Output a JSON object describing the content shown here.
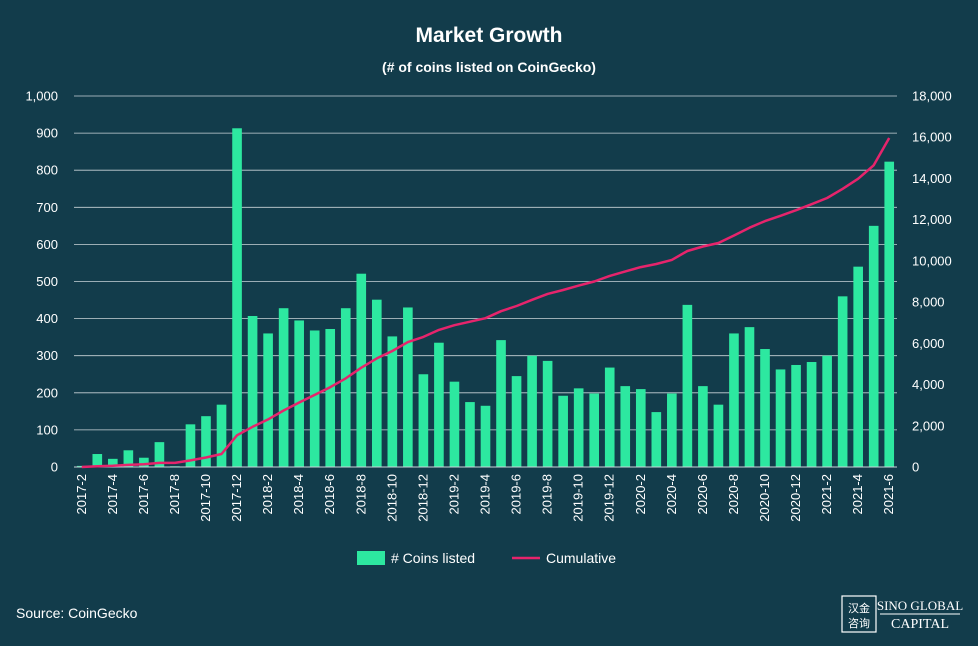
{
  "source_label": "Source: CoinGecko",
  "logo": {
    "line1": "SINO GLOBAL",
    "line2": "CAPITAL",
    "glyphs": "汉金 咨询"
  },
  "colors": {
    "background": "#123c4b",
    "bar": "#2de8a0",
    "line": "#e6246c",
    "grid": "#c9d3d8"
  },
  "chart_data": {
    "type": "bar",
    "title": "Market Growth",
    "subtitle": "(# of coins listed on CoinGecko)",
    "xlabel": "",
    "ylabel": "",
    "categories": [
      "2017-2",
      "2017-3",
      "2017-4",
      "2017-5",
      "2017-6",
      "2017-7",
      "2017-8",
      "2017-9",
      "2017-10",
      "2017-11",
      "2017-12",
      "2018-1",
      "2018-2",
      "2018-3",
      "2018-4",
      "2018-5",
      "2018-6",
      "2018-7",
      "2018-8",
      "2018-9",
      "2018-10",
      "2018-11",
      "2018-12",
      "2019-1",
      "2019-2",
      "2019-3",
      "2019-4",
      "2019-5",
      "2019-6",
      "2019-7",
      "2019-8",
      "2019-9",
      "2019-10",
      "2019-11",
      "2019-12",
      "2020-1",
      "2020-2",
      "2020-3",
      "2020-4",
      "2020-5",
      "2020-6",
      "2020-7",
      "2020-8",
      "2020-9",
      "2020-10",
      "2020-11",
      "2020-12",
      "2021-1",
      "2021-2",
      "2021-3",
      "2021-4",
      "2021-5",
      "2021-6"
    ],
    "tick_labels": [
      "2017-2",
      "2017-4",
      "2017-6",
      "2017-8",
      "2017-10",
      "2017-12",
      "2018-2",
      "2018-4",
      "2018-6",
      "2018-8",
      "2018-10",
      "2018-12",
      "2019-2",
      "2019-4",
      "2019-6",
      "2019-8",
      "2019-10",
      "2019-12",
      "2020-2",
      "2020-4",
      "2020-6",
      "2020-8",
      "2020-10",
      "2020-12",
      "2021-2",
      "2021-4",
      "2021-6"
    ],
    "series": [
      {
        "name": "# Coins listed",
        "axis": "left",
        "type": "bar",
        "values": [
          3,
          35,
          22,
          45,
          25,
          67,
          2,
          115,
          137,
          168,
          913,
          407,
          360,
          428,
          395,
          368,
          372,
          428,
          521,
          451,
          352,
          430,
          250,
          335,
          230,
          175,
          165,
          342,
          245,
          300,
          286,
          192,
          212,
          198,
          268,
          218,
          210,
          148,
          198,
          437,
          218,
          168,
          360,
          377,
          318,
          263,
          275,
          283,
          300,
          460,
          540,
          650,
          823
        ]
      },
      {
        "name": "Cumulative",
        "axis": "right",
        "type": "line",
        "values": [
          0,
          40,
          60,
          100,
          130,
          200,
          200,
          320,
          460,
          630,
          1540,
          1950,
          2310,
          2740,
          3130,
          3500,
          3870,
          4300,
          4820,
          5270,
          5630,
          6060,
          6310,
          6650,
          6880,
          7050,
          7220,
          7560,
          7810,
          8110,
          8400,
          8590,
          8800,
          9000,
          9270,
          9490,
          9700,
          9850,
          10050,
          10480,
          10700,
          10870,
          11230,
          11610,
          11930,
          12190,
          12460,
          12750,
          13050,
          13500,
          13990,
          14640,
          15960
        ]
      }
    ],
    "y_left": {
      "range": [
        0,
        1000
      ],
      "ticks": [
        "0",
        "100",
        "200",
        "300",
        "400",
        "500",
        "600",
        "700",
        "800",
        "900",
        "1,000"
      ]
    },
    "y_right": {
      "range": [
        0,
        18000
      ],
      "ticks": [
        "0",
        "2,000",
        "4,000",
        "6,000",
        "8,000",
        "10,000",
        "12,000",
        "14,000",
        "16,000",
        "18,000"
      ]
    },
    "grid": true,
    "legend_position": "bottom"
  }
}
